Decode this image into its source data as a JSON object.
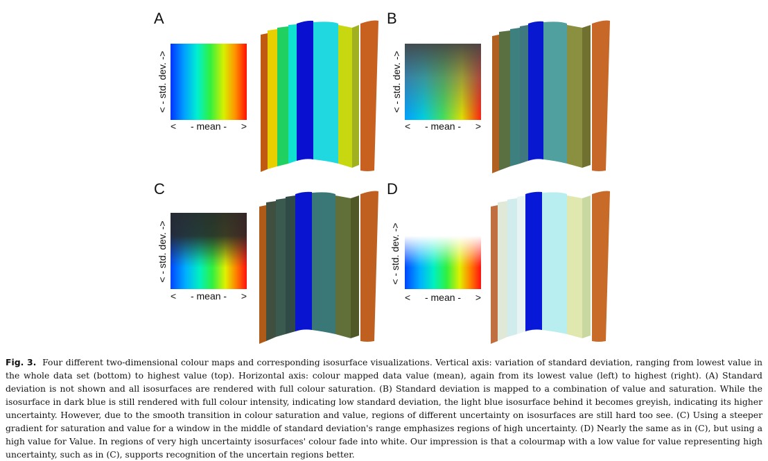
{
  "panels": [
    {
      "letter": "A",
      "y_label": "< - std. dev. ->",
      "x_left": "<",
      "x_mid": "- mean -",
      "x_right": ">"
    },
    {
      "letter": "B",
      "y_label": "< - std. dev. ->",
      "x_left": "<",
      "x_mid": "- mean -",
      "x_right": ">"
    },
    {
      "letter": "C",
      "y_label": "< - std. dev. ->",
      "x_left": "<",
      "x_mid": "- mean -",
      "x_right": ">"
    },
    {
      "letter": "D",
      "y_label": "< - std. dev. ->",
      "x_left": "<",
      "x_mid": "- mean -",
      "x_right": ">"
    }
  ],
  "caption": {
    "label": "Fig. 3.",
    "text": "Four different two-dimensional colour maps and corresponding isosurface visualizations. Vertical axis: variation of standard deviation, ranging from lowest value in the whole data set (bottom) to highest value (top). Horizontal axis: colour mapped data value (mean), again from its lowest value (left) to highest (right). (A) Standard deviation is not shown and all isosurfaces are rendered with full colour saturation. (B) Standard deviation is mapped to a combination of value and saturation. While the isosurface in dark blue is still rendered with full colour intensity, indicating low standard deviation, the light blue isosurface behind it becomes greyish, indicating its higher uncertainty. However, due to the smooth transition in colour saturation and value, regions of different uncertainty on isosurfaces are still hard too see. (C) Using a steeper gradient for saturation and value for a window in the middle of standard deviation's range emphasizes regions of high uncertainty. (D) Nearly the same as in (C), but using a high value for Value. In regions of very high uncertainty isosurfaces' colour fade into white. Our impression is that a colourmap with a low value for value representing high uncertainty, such as in (C), supports recognition of the uncertain regions better."
  }
}
